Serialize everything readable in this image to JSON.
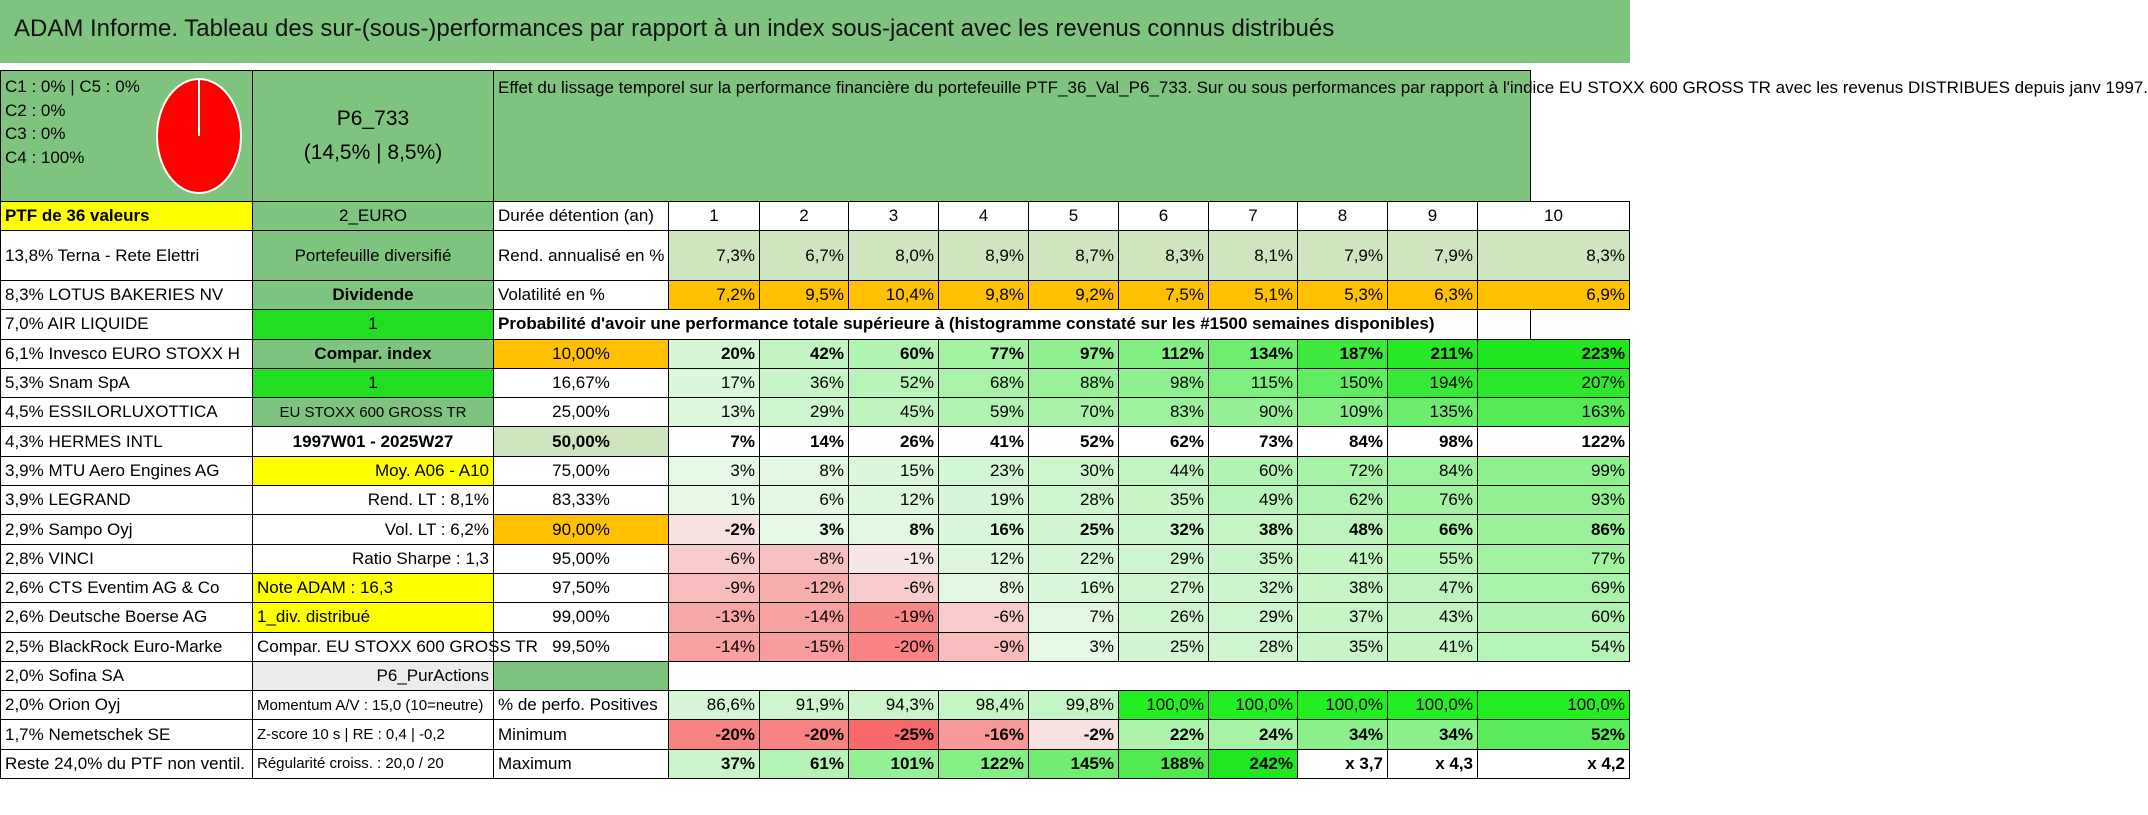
{
  "title": "ADAM Informe. Tableau des sur-(sous-)performances par rapport à un index sous-jacent avec les revenus connus distribués",
  "pie_legend": [
    "C1 : 0% | C5 : 0%",
    "C2 : 0%",
    "C3 : 0%",
    "C4 : 100%"
  ],
  "pie_chart": {
    "type": "pie",
    "slices": [
      {
        "label": "C4",
        "value": 100,
        "color": "#ff0000"
      }
    ]
  },
  "portfolio": {
    "name": "P6_733",
    "stats": "(14,5% | 8,5%)"
  },
  "description": "Effet du lissage temporel sur la performance financière du portefeuille PTF_36_Val_P6_733. Sur ou sous performances par rapport à l'indice EU STOXX 600 GROSS TR avec les revenus DISTRIBUES depuis janv 1997.",
  "holdings_header": "PTF de 36 valeurs",
  "holdings": [
    "13,8% Terna - Rete Elettri",
    "8,3% LOTUS BAKERIES NV",
    "7,0% AIR LIQUIDE",
    "6,1% Invesco EURO STOXX H",
    "5,3% Snam SpA",
    "4,5% ESSILORLUXOTTICA",
    "4,3% HERMES INTL",
    "3,9% MTU Aero Engines AG",
    "3,9% LEGRAND",
    "2,9% Sampo Oyj",
    "2,8% VINCI",
    "2,6% CTS Eventim AG & Co",
    "2,6% Deutsche Boerse AG",
    "2,5% BlackRock Euro-Marke",
    "2,0% Sofina SA",
    "2,0% Orion Oyj",
    "1,7% Nemetschek SE",
    "Reste 24,0% du PTF non ventil."
  ],
  "info": [
    "2_EURO",
    "Portefeuille diversifié",
    "Dividende",
    "1",
    "Compar. index",
    "1",
    "EU STOXX 600 GROSS TR",
    "1997W01 - 2025W27",
    "Moy. A06 - A10",
    "Rend. LT : 8,1%",
    "Vol. LT : 6,2%",
    "Ratio Sharpe : 1,3",
    "Note ADAM : 16,3",
    "1_div. distribué",
    "Compar. EU STOXX 600 GROSS TR",
    "P6_PurActions",
    "Momentum A/V : 15,0 (10=neutre)",
    "Z-score 10 s | RE : 0,4 | -0,2",
    "Régularité croiss. : 20,0 / 20"
  ],
  "duration_label": "Durée détention (an)",
  "years": [
    "1",
    "2",
    "3",
    "4",
    "5",
    "6",
    "7",
    "8",
    "9",
    "10"
  ],
  "rend_label": "Rend. annualisé en %",
  "rend": [
    "7,3%",
    "6,7%",
    "8,0%",
    "8,9%",
    "8,7%",
    "8,3%",
    "8,1%",
    "7,9%",
    "7,9%",
    "8,3%"
  ],
  "vol_label": "Volatilité en %",
  "vol": [
    "7,2%",
    "9,5%",
    "10,4%",
    "9,8%",
    "9,2%",
    "7,5%",
    "5,1%",
    "5,3%",
    "6,3%",
    "6,9%"
  ],
  "proba_label": "Probabilité d'avoir une performance totale supérieure à (histogramme constaté sur les #1500 semaines disponibles)",
  "quantiles": [
    {
      "p": "10,00%",
      "v": [
        "20%",
        "42%",
        "60%",
        "77%",
        "97%",
        "112%",
        "134%",
        "187%",
        "211%",
        "223%"
      ]
    },
    {
      "p": "16,67%",
      "v": [
        "17%",
        "36%",
        "52%",
        "68%",
        "88%",
        "98%",
        "115%",
        "150%",
        "194%",
        "207%"
      ]
    },
    {
      "p": "25,00%",
      "v": [
        "13%",
        "29%",
        "45%",
        "59%",
        "70%",
        "83%",
        "90%",
        "109%",
        "135%",
        "163%"
      ]
    },
    {
      "p": "50,00%",
      "v": [
        "7%",
        "14%",
        "26%",
        "41%",
        "52%",
        "62%",
        "73%",
        "84%",
        "98%",
        "122%"
      ]
    },
    {
      "p": "75,00%",
      "v": [
        "3%",
        "8%",
        "15%",
        "23%",
        "30%",
        "44%",
        "60%",
        "72%",
        "84%",
        "99%"
      ]
    },
    {
      "p": "83,33%",
      "v": [
        "1%",
        "6%",
        "12%",
        "19%",
        "28%",
        "35%",
        "49%",
        "62%",
        "76%",
        "93%"
      ]
    },
    {
      "p": "90,00%",
      "v": [
        "-2%",
        "3%",
        "8%",
        "16%",
        "25%",
        "32%",
        "38%",
        "48%",
        "66%",
        "86%"
      ]
    },
    {
      "p": "95,00%",
      "v": [
        "-6%",
        "-8%",
        "-1%",
        "12%",
        "22%",
        "29%",
        "35%",
        "41%",
        "55%",
        "77%"
      ]
    },
    {
      "p": "97,50%",
      "v": [
        "-9%",
        "-12%",
        "-6%",
        "8%",
        "16%",
        "27%",
        "32%",
        "38%",
        "47%",
        "69%"
      ]
    },
    {
      "p": "99,00%",
      "v": [
        "-13%",
        "-14%",
        "-19%",
        "-6%",
        "7%",
        "26%",
        "29%",
        "37%",
        "43%",
        "60%"
      ]
    },
    {
      "p": "99,50%",
      "v": [
        "-14%",
        "-15%",
        "-20%",
        "-9%",
        "3%",
        "25%",
        "28%",
        "35%",
        "41%",
        "54%"
      ]
    }
  ],
  "pos_label": "% de perfo. Positives",
  "pos": [
    "86,6%",
    "91,9%",
    "94,3%",
    "98,4%",
    "99,8%",
    "100,0%",
    "100,0%",
    "100,0%",
    "100,0%",
    "100,0%"
  ],
  "min_label": "Minimum",
  "min": [
    "-20%",
    "-20%",
    "-25%",
    "-16%",
    "-2%",
    "22%",
    "24%",
    "34%",
    "34%",
    "52%"
  ],
  "max_label": "Maximum",
  "max": [
    "37%",
    "61%",
    "101%",
    "122%",
    "145%",
    "188%",
    "242%",
    "x 3,7",
    "x 4,3",
    "x 4,2"
  ],
  "colors": {
    "header_green": "#7ec47e",
    "bright_green": "#22dd22",
    "yellow": "#ffff00",
    "orange": "#ffc000",
    "pie_red": "#ff0000",
    "label_red": "#e0141e"
  }
}
